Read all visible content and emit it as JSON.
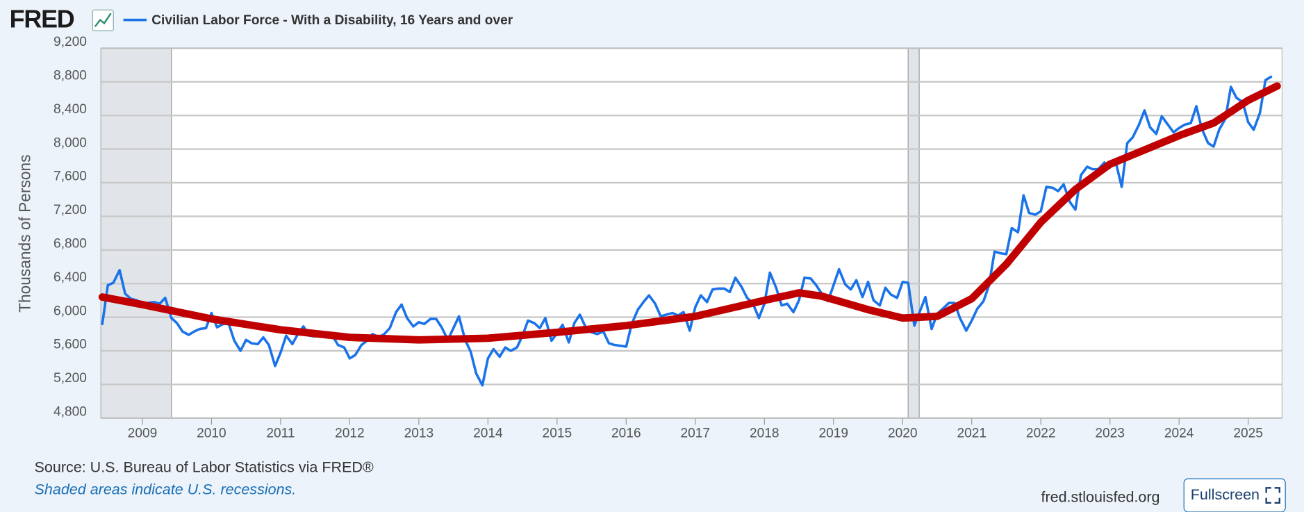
{
  "page": {
    "logo": "FRED",
    "source": "Source: U.S. Bureau of Labor Statistics via FRED®",
    "note": "Shaded areas indicate U.S. recessions.",
    "site": "fred.stlouisfed.org",
    "button": "Fullscreen"
  },
  "chart_data": {
    "type": "line",
    "y_label": "Thousands of Persons",
    "grid": true,
    "xlim": [
      2008.4,
      2025.49
    ],
    "xticks": [
      2009,
      2010,
      2011,
      2012,
      2013,
      2014,
      2015,
      2016,
      2017,
      2018,
      2019,
      2020,
      2021,
      2022,
      2023,
      2024,
      2025
    ],
    "ylim": [
      4800,
      9200
    ],
    "yticks": [
      {
        "value": 4800,
        "label": "4,800"
      },
      {
        "value": 5200,
        "label": "5,200"
      },
      {
        "value": 5600,
        "label": "5,600"
      },
      {
        "value": 6000,
        "label": "6,000"
      },
      {
        "value": 6400,
        "label": "6,400"
      },
      {
        "value": 6800,
        "label": "6,800"
      },
      {
        "value": 7200,
        "label": "7,200"
      },
      {
        "value": 7600,
        "label": "7,600"
      },
      {
        "value": 8000,
        "label": "8,000"
      },
      {
        "value": 8400,
        "label": "8,400"
      },
      {
        "value": 8800,
        "label": "8,800"
      },
      {
        "value": 9200,
        "label": "9,200"
      }
    ],
    "recessions": [
      [
        2008.4,
        2009.42
      ],
      [
        2020.08,
        2020.24
      ]
    ],
    "series": [
      {
        "name": "Civilian Labor Force - With a Disability, 16 Years and over",
        "color": "#1a73e8",
        "x": [
          2008.42,
          2008.5,
          2008.58,
          2008.67,
          2008.75,
          2008.83,
          2008.92,
          2009,
          2009.08,
          2009.17,
          2009.25,
          2009.33,
          2009.42,
          2009.5,
          2009.58,
          2009.67,
          2009.75,
          2009.83,
          2009.92,
          2010,
          2010.08,
          2010.17,
          2010.25,
          2010.33,
          2010.42,
          2010.5,
          2010.58,
          2010.67,
          2010.75,
          2010.83,
          2010.92,
          2011,
          2011.08,
          2011.17,
          2011.25,
          2011.33,
          2011.42,
          2011.5,
          2011.58,
          2011.67,
          2011.75,
          2011.83,
          2011.92,
          2012,
          2012.08,
          2012.17,
          2012.25,
          2012.33,
          2012.42,
          2012.5,
          2012.58,
          2012.67,
          2012.75,
          2012.83,
          2012.92,
          2013,
          2013.08,
          2013.17,
          2013.25,
          2013.33,
          2013.42,
          2013.5,
          2013.58,
          2013.67,
          2013.75,
          2013.83,
          2013.92,
          2014,
          2014.08,
          2014.17,
          2014.25,
          2014.33,
          2014.42,
          2014.5,
          2014.58,
          2014.67,
          2014.75,
          2014.83,
          2014.92,
          2015,
          2015.08,
          2015.17,
          2015.25,
          2015.33,
          2015.42,
          2015.5,
          2015.58,
          2015.67,
          2015.75,
          2015.83,
          2015.92,
          2016,
          2016.08,
          2016.17,
          2016.25,
          2016.33,
          2016.42,
          2016.5,
          2016.58,
          2016.67,
          2016.75,
          2016.83,
          2016.92,
          2017,
          2017.08,
          2017.17,
          2017.25,
          2017.33,
          2017.42,
          2017.5,
          2017.58,
          2017.67,
          2017.75,
          2017.83,
          2017.92,
          2018,
          2018.08,
          2018.17,
          2018.25,
          2018.33,
          2018.42,
          2018.5,
          2018.58,
          2018.67,
          2018.75,
          2018.83,
          2018.92,
          2019,
          2019.08,
          2019.17,
          2019.25,
          2019.33,
          2019.42,
          2019.5,
          2019.58,
          2019.67,
          2019.75,
          2019.83,
          2019.92,
          2020,
          2020.08,
          2020.17,
          2020.25,
          2020.33,
          2020.42,
          2020.5,
          2020.58,
          2020.67,
          2020.75,
          2020.83,
          2020.92,
          2021,
          2021.08,
          2021.17,
          2021.25,
          2021.33,
          2021.42,
          2021.5,
          2021.58,
          2021.67,
          2021.75,
          2021.83,
          2021.92,
          2022,
          2022.08,
          2022.17,
          2022.25,
          2022.33,
          2022.42,
          2022.5,
          2022.58,
          2022.67,
          2022.75,
          2022.83,
          2022.92,
          2023,
          2023.08,
          2023.17,
          2023.25,
          2023.33,
          2023.42,
          2023.5,
          2023.58,
          2023.67,
          2023.75,
          2023.83,
          2023.92,
          2024,
          2024.08,
          2024.17,
          2024.25,
          2024.33,
          2024.42,
          2024.5,
          2024.58,
          2024.67,
          2024.75,
          2024.83,
          2024.92,
          2025,
          2025.08,
          2025.17,
          2025.25,
          2025.33
        ],
        "values": [
          5920,
          6380,
          6410,
          6560,
          6280,
          6220,
          6200,
          6150,
          6170,
          6180,
          6160,
          6230,
          5990,
          5930,
          5830,
          5790,
          5830,
          5860,
          5870,
          6050,
          5880,
          5920,
          5920,
          5720,
          5600,
          5730,
          5690,
          5680,
          5760,
          5670,
          5420,
          5580,
          5780,
          5680,
          5800,
          5890,
          5780,
          5770,
          5790,
          5760,
          5780,
          5670,
          5640,
          5510,
          5550,
          5670,
          5720,
          5800,
          5760,
          5800,
          5870,
          6060,
          6150,
          5990,
          5890,
          5940,
          5920,
          5980,
          5980,
          5880,
          5730,
          5870,
          6010,
          5730,
          5590,
          5330,
          5190,
          5510,
          5620,
          5530,
          5640,
          5600,
          5640,
          5780,
          5960,
          5930,
          5870,
          5990,
          5720,
          5810,
          5910,
          5700,
          5930,
          6030,
          5870,
          5820,
          5800,
          5830,
          5690,
          5670,
          5660,
          5650,
          5920,
          6090,
          6180,
          6260,
          6160,
          6010,
          6030,
          6050,
          6020,
          6060,
          5840,
          6120,
          6260,
          6180,
          6330,
          6340,
          6340,
          6300,
          6470,
          6360,
          6230,
          6170,
          5990,
          6160,
          6530,
          6350,
          6140,
          6160,
          6060,
          6200,
          6470,
          6460,
          6380,
          6280,
          6190,
          6380,
          6570,
          6390,
          6330,
          6440,
          6240,
          6420,
          6200,
          6140,
          6350,
          6270,
          6230,
          6420,
          6410,
          5900,
          6070,
          6240,
          5860,
          6040,
          6100,
          6170,
          6170,
          5990,
          5840,
          5960,
          6100,
          6190,
          6380,
          6780,
          6760,
          6750,
          7060,
          7010,
          7450,
          7240,
          7220,
          7260,
          7550,
          7540,
          7500,
          7580,
          7370,
          7280,
          7690,
          7790,
          7760,
          7760,
          7840,
          7780,
          7860,
          7550,
          8070,
          8140,
          8290,
          8460,
          8260,
          8180,
          8390,
          8300,
          8200,
          8250,
          8290,
          8310,
          8510,
          8240,
          8070,
          8030,
          8230,
          8360,
          8740,
          8610,
          8560,
          8320,
          8230,
          8430,
          8820,
          8860
        ]
      },
      {
        "color": "#c00000",
        "x": [
          2008.42,
          2009,
          2010,
          2011,
          2012,
          2013,
          2014,
          2015,
          2016,
          2017,
          2018,
          2018.5,
          2018.83,
          2019.5,
          2020,
          2020.5,
          2021,
          2021.5,
          2022,
          2022.5,
          2023,
          2023.5,
          2024,
          2024.5,
          2025,
          2025.42
        ],
        "values": [
          6240,
          6150,
          5980,
          5850,
          5760,
          5730,
          5750,
          5820,
          5900,
          6010,
          6200,
          6290,
          6250,
          6090,
          5990,
          6010,
          6220,
          6630,
          7130,
          7520,
          7820,
          7990,
          8160,
          8310,
          8580,
          8750
        ]
      }
    ]
  }
}
